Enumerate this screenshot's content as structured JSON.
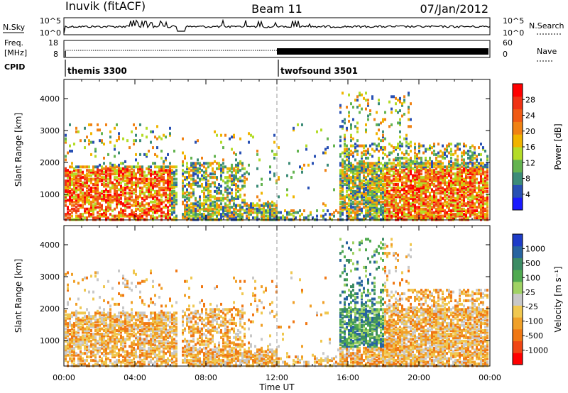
{
  "header": {
    "station": "Inuvik (fitACF)",
    "beam": "Beam 11",
    "date": "07/Jan/2012"
  },
  "status_panel": {
    "left_label_1": "N.Sky",
    "left_label_2": "Freq.",
    "left_label_2b": "[MHz]",
    "left_label_3": "CPID",
    "right_label_1": "N.Search",
    "right_label_2": "Nave",
    "nsky_ticks": [
      "10^5",
      "10^0"
    ],
    "freq_ticks": [
      "18",
      "8"
    ],
    "nsearch_ticks": [
      "10^5",
      "10^0"
    ],
    "nave_ticks": [
      "60",
      "0"
    ],
    "cpid_segments": [
      {
        "start_hour": 0,
        "end_hour": 12,
        "label": "themis 3300"
      },
      {
        "start_hour": 12,
        "end_hour": 24,
        "label": "twofsound 3501"
      }
    ]
  },
  "x_axis": {
    "label": "Time UT",
    "ticks": [
      "00:00",
      "04:00",
      "08:00",
      "12:00",
      "16:00",
      "20:00",
      "00:00"
    ]
  },
  "chart_data": [
    {
      "type": "heatmap",
      "name": "power",
      "xlabel": "Time UT",
      "ylabel": "Slant Range [km]",
      "xlim": [
        0,
        24
      ],
      "ylim": [
        200,
        4600
      ],
      "yticks": [
        "1000",
        "2000",
        "3000",
        "4000"
      ],
      "colorbar": {
        "label": "Power [dB]",
        "ticks": [
          "4",
          "8",
          "12",
          "16",
          "20",
          "24",
          "28"
        ],
        "colors": [
          "#1a1aff",
          "#2850b4",
          "#3c8c78",
          "#64b450",
          "#b4dc28",
          "#f0b400",
          "#f08214",
          "#f05a14",
          "#f03214",
          "#ff0000"
        ]
      }
    },
    {
      "type": "heatmap",
      "name": "velocity",
      "xlabel": "Time UT",
      "ylabel": "Slant Range [km]",
      "xlim": [
        0,
        24
      ],
      "ylim": [
        200,
        4600
      ],
      "yticks": [
        "1000",
        "2000",
        "3000",
        "4000"
      ],
      "colorbar": {
        "label": "Velocity [m s⁻¹]",
        "ticks": [
          "1000",
          "500",
          "100",
          "25",
          "-25",
          "-100",
          "-500",
          "-1000"
        ],
        "colors": [
          "#1e3cc8",
          "#2864a0",
          "#3c8c64",
          "#50aa50",
          "#a0d264",
          "#c8c8c8",
          "#f0c850",
          "#f0a028",
          "#f07814",
          "#f04614",
          "#ff0000"
        ]
      }
    }
  ]
}
